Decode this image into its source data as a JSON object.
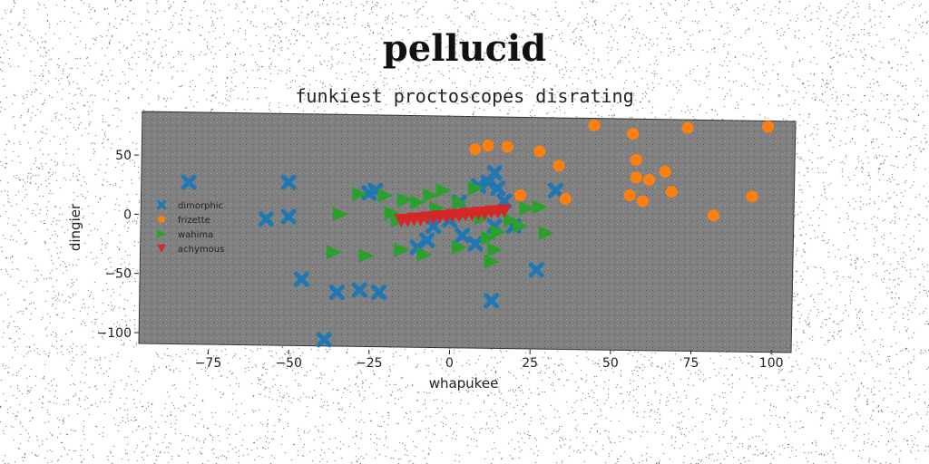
{
  "title": "pellucid",
  "subtitle": "funkiest proctoscopes disrating",
  "chart_data": {
    "type": "scatter",
    "xlabel": "whapukee",
    "ylabel": "dingier",
    "xlim": [
      -96,
      107
    ],
    "ylim": [
      -113,
      83
    ],
    "xticks": [
      -75,
      -50,
      -25,
      0,
      25,
      50,
      75,
      100
    ],
    "xtick_labels": [
      "−75",
      "−50",
      "−25",
      "0",
      "25",
      "50",
      "75",
      "100"
    ],
    "yticks": [
      50,
      0,
      -50,
      -100
    ],
    "ytick_labels": [
      "50",
      "0",
      "−50",
      "−100"
    ],
    "grid": false,
    "legend": "center-left",
    "plot_background": "#808080",
    "series": [
      {
        "name": "dimorphic",
        "color": "#1f77b4",
        "marker": "x",
        "points": [
          [
            -81,
            27
          ],
          [
            -50,
            27
          ],
          [
            -57,
            -4
          ],
          [
            -50,
            -2
          ],
          [
            -46,
            -55
          ],
          [
            -35,
            -66
          ],
          [
            -28,
            -64
          ],
          [
            -22,
            -66
          ],
          [
            -39,
            -106
          ],
          [
            -25,
            18
          ],
          [
            -23,
            20
          ],
          [
            -10,
            -28
          ],
          [
            -7,
            -22
          ],
          [
            -5,
            -10
          ],
          [
            0,
            -5
          ],
          [
            3,
            10
          ],
          [
            4,
            -18
          ],
          [
            8,
            -25
          ],
          [
            9,
            24
          ],
          [
            12,
            27
          ],
          [
            14,
            35
          ],
          [
            15,
            22
          ],
          [
            17,
            11
          ],
          [
            14,
            -10
          ],
          [
            13,
            -73
          ],
          [
            20,
            -10
          ],
          [
            27,
            -47
          ],
          [
            33,
            20
          ]
        ]
      },
      {
        "name": "frizette",
        "color": "#ff7f0e",
        "marker": "o",
        "points": [
          [
            8,
            55
          ],
          [
            12,
            58
          ],
          [
            18,
            57
          ],
          [
            28,
            53
          ],
          [
            34,
            41
          ],
          [
            36,
            13
          ],
          [
            22,
            16
          ],
          [
            45,
            75
          ],
          [
            57,
            68
          ],
          [
            58,
            46
          ],
          [
            58,
            31
          ],
          [
            62,
            29
          ],
          [
            60,
            11
          ],
          [
            56,
            16
          ],
          [
            67,
            36
          ],
          [
            69,
            19
          ],
          [
            74,
            73
          ],
          [
            82,
            -1
          ],
          [
            94,
            15
          ],
          [
            99,
            74
          ]
        ]
      },
      {
        "name": "wahima",
        "color": "#2ca02c",
        "marker": ">",
        "points": [
          [
            -34,
            0
          ],
          [
            -28,
            17
          ],
          [
            -20,
            16
          ],
          [
            -18,
            1
          ],
          [
            -16,
            -5
          ],
          [
            -14,
            12
          ],
          [
            -10,
            10
          ],
          [
            -6,
            16
          ],
          [
            -4,
            5
          ],
          [
            -2,
            20
          ],
          [
            3,
            10
          ],
          [
            6,
            2
          ],
          [
            8,
            22
          ],
          [
            10,
            -3
          ],
          [
            12,
            -20
          ],
          [
            14,
            -30
          ],
          [
            15,
            -15
          ],
          [
            -36,
            -32
          ],
          [
            -26,
            -35
          ],
          [
            -15,
            -30
          ],
          [
            -8,
            -34
          ],
          [
            3,
            -28
          ],
          [
            13,
            -40
          ],
          [
            19,
            -5
          ],
          [
            24,
            5
          ],
          [
            28,
            6
          ],
          [
            30,
            -16
          ],
          [
            22,
            -10
          ]
        ]
      },
      {
        "name": "achymous",
        "color": "#d62728",
        "marker": "v",
        "points": [
          [
            -15,
            -5
          ],
          [
            -13,
            -5
          ],
          [
            -11,
            -4
          ],
          [
            -9,
            -4
          ],
          [
            -7,
            -3
          ],
          [
            -5,
            -3
          ],
          [
            -3,
            -2
          ],
          [
            -1,
            -2
          ],
          [
            1,
            -1
          ],
          [
            3,
            -1
          ],
          [
            5,
            0
          ],
          [
            7,
            0
          ],
          [
            9,
            1
          ],
          [
            11,
            1
          ],
          [
            13,
            2
          ],
          [
            15,
            2
          ],
          [
            17,
            3
          ]
        ]
      }
    ]
  }
}
